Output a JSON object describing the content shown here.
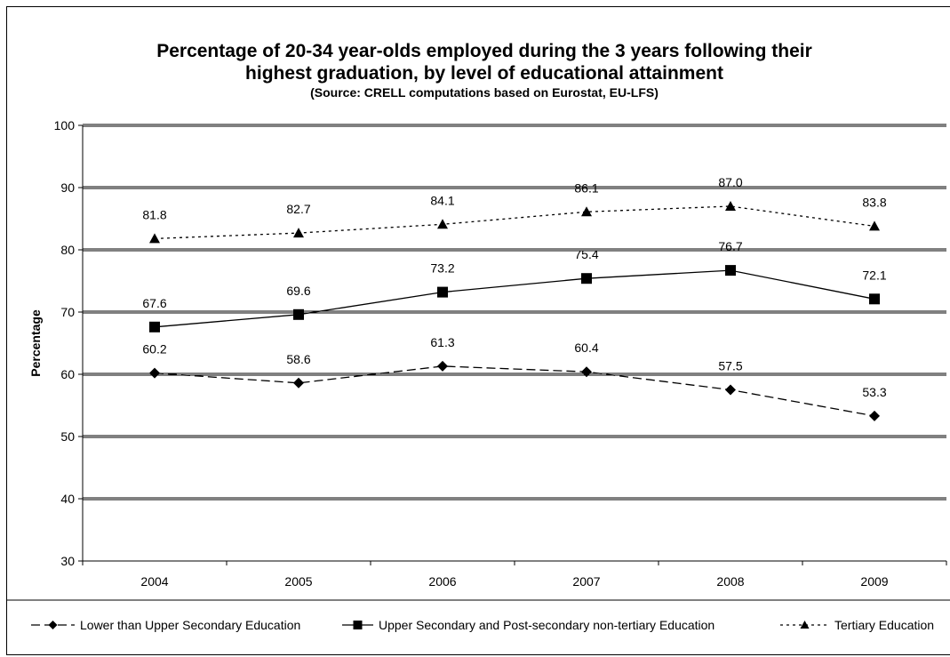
{
  "chart_data": {
    "type": "line",
    "title_line1": "Percentage of 20-34 year-olds employed during the 3 years following their",
    "title_line2": "highest graduation, by level of educational attainment",
    "subtitle": "(Source: CRELL computations based on Eurostat, EU-LFS)",
    "ylabel": "Percentage",
    "xlabel": "",
    "ylim": [
      30,
      100
    ],
    "yticks": [
      30,
      40,
      50,
      60,
      70,
      80,
      90,
      100
    ],
    "grid": true,
    "legend_position": "bottom",
    "categories": [
      "2004",
      "2005",
      "2006",
      "2007",
      "2008",
      "2009"
    ],
    "series": [
      {
        "name": "Lower than Upper Secondary Education",
        "values": [
          60.2,
          58.6,
          61.3,
          60.4,
          57.5,
          53.3
        ],
        "labels": [
          "60.2",
          "58.6",
          "61.3",
          "60.4",
          "57.5",
          "53.3"
        ],
        "marker": "diamond",
        "line_style": "dashed",
        "color": "#000000"
      },
      {
        "name": "Upper Secondary and Post-secondary non-tertiary Education",
        "values": [
          67.6,
          69.6,
          73.2,
          75.4,
          76.7,
          72.1
        ],
        "labels": [
          "67.6",
          "69.6",
          "73.2",
          "75.4",
          "76.7",
          "72.1"
        ],
        "marker": "square",
        "line_style": "solid",
        "color": "#000000"
      },
      {
        "name": "Tertiary Education",
        "values": [
          81.8,
          82.7,
          84.1,
          86.1,
          87.0,
          83.8
        ],
        "labels": [
          "81.8",
          "82.7",
          "84.1",
          "86.1",
          "87.0",
          "83.8"
        ],
        "marker": "triangle",
        "line_style": "dotted",
        "color": "#000000"
      }
    ]
  }
}
